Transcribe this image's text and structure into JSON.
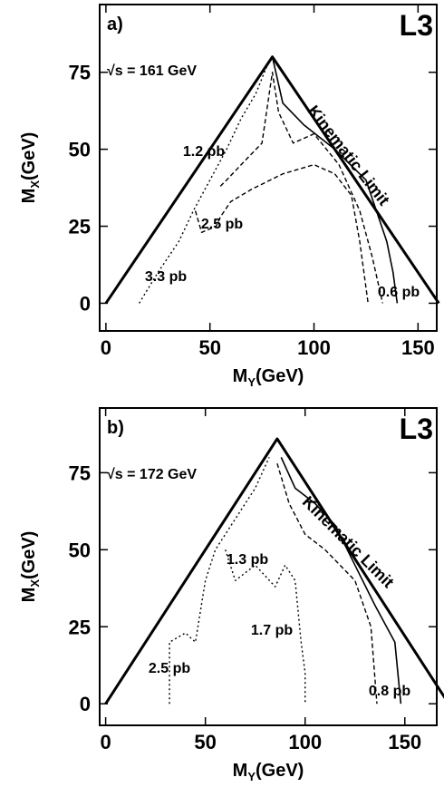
{
  "chart_data": [
    {
      "type": "line",
      "panel": "a)",
      "experiment": "L3",
      "energy": "√s = 161 GeV",
      "xlabel": [
        "M",
        "Y",
        "(GeV)"
      ],
      "ylabel": [
        "M",
        "X",
        "(GeV)"
      ],
      "xlim": [
        -3,
        159
      ],
      "ylim": [
        -9,
        97
      ],
      "xticks": [
        0,
        50,
        100,
        150
      ],
      "yticks": [
        0,
        25,
        50,
        75
      ],
      "series": [
        {
          "name": "Kinematic Limit",
          "color": "#000000",
          "style": "thick",
          "x": [
            0,
            80,
            160
          ],
          "values": [
            0,
            80,
            0
          ]
        },
        {
          "name": "0.6 pb",
          "color": "#000000",
          "style": "solid",
          "x": [
            80,
            85,
            95,
            110,
            125,
            135,
            138,
            140
          ],
          "values": [
            80,
            65,
            58,
            50,
            40,
            20,
            10,
            0
          ]
        },
        {
          "name": "1.2 pb",
          "color": "#000000",
          "style": "dashed",
          "x": [
            55,
            58,
            65,
            75,
            80,
            83,
            90,
            100,
            112,
            122,
            128,
            133
          ],
          "values": [
            38,
            40,
            45,
            52,
            75,
            62,
            52,
            55,
            45,
            30,
            15,
            0
          ]
        },
        {
          "name": "2.5 pb",
          "color": "#000000",
          "style": "dashed",
          "x": [
            43,
            46,
            53,
            55,
            60,
            70,
            85,
            100,
            110,
            118,
            122,
            126
          ],
          "values": [
            30,
            23,
            25,
            28,
            33,
            37,
            42,
            45,
            42,
            35,
            20,
            0
          ]
        },
        {
          "name": "3.3 pb",
          "color": "#000000",
          "style": "dotted",
          "x": [
            16,
            25,
            35,
            42,
            50,
            58,
            65,
            72,
            78
          ],
          "values": [
            0,
            10,
            20,
            30,
            40,
            50,
            60,
            68,
            78
          ]
        }
      ]
    },
    {
      "type": "line",
      "panel": "b)",
      "experiment": "L3",
      "energy": "√s = 172 GeV",
      "xlabel": [
        "M",
        "Y",
        "(GeV)"
      ],
      "ylabel": [
        "M",
        "X",
        "(GeV)"
      ],
      "xlim": [
        -3,
        166
      ],
      "ylim": [
        -7,
        96
      ],
      "xticks": [
        0,
        50,
        100,
        150
      ],
      "yticks": [
        0,
        25,
        50,
        75
      ],
      "series": [
        {
          "name": "Kinematic Limit",
          "color": "#000000",
          "style": "thick",
          "x": [
            0,
            86,
            172
          ],
          "values": [
            0,
            86,
            0
          ]
        },
        {
          "name": "0.8 pb",
          "color": "#000000",
          "style": "solid",
          "x": [
            88,
            95,
            105,
            115,
            125,
            135,
            145,
            148
          ],
          "values": [
            80,
            70,
            65,
            58,
            45,
            32,
            20,
            0
          ]
        },
        {
          "name": "1.3 pb",
          "color": "#000000",
          "style": "dashed",
          "x": [
            86,
            92,
            100,
            110,
            125,
            133,
            136
          ],
          "values": [
            78,
            65,
            55,
            50,
            40,
            25,
            0
          ]
        },
        {
          "name": "1.7 pb",
          "color": "#000000",
          "style": "dotted",
          "x": [
            60,
            65,
            75,
            85,
            90,
            95,
            98,
            100,
            100
          ],
          "values": [
            50,
            40,
            45,
            38,
            45,
            40,
            20,
            10,
            0
          ]
        },
        {
          "name": "2.5 pb",
          "color": "#000000",
          "style": "dotted",
          "x": [
            32,
            32,
            40,
            45,
            50,
            55,
            65,
            75,
            82
          ],
          "values": [
            0,
            20,
            23,
            20,
            40,
            50,
            60,
            70,
            80
          ]
        }
      ]
    }
  ]
}
